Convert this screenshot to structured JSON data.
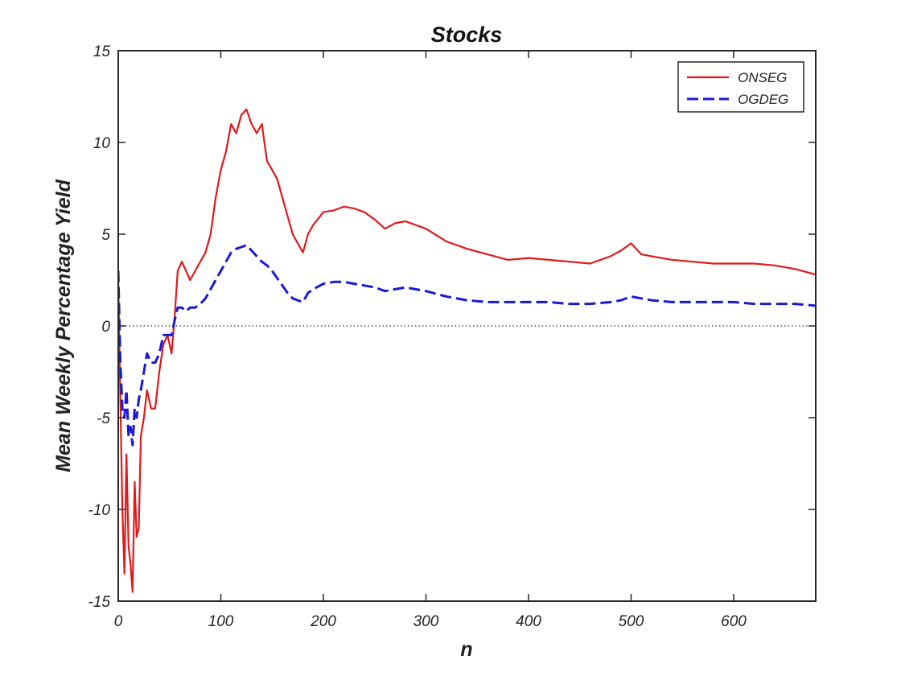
{
  "chart_data": {
    "type": "line",
    "title": "Stocks",
    "xlabel": "n",
    "ylabel": "Mean Weekly Percentage Yield",
    "xlim": [
      0,
      680
    ],
    "ylim": [
      -15,
      15
    ],
    "xticks": [
      0,
      100,
      200,
      300,
      400,
      500,
      600
    ],
    "yticks": [
      -15,
      -10,
      -5,
      0,
      5,
      10,
      15
    ],
    "xtick_labels": [
      "0",
      "100",
      "200",
      "300",
      "400",
      "500",
      "600"
    ],
    "ytick_labels": [
      "-15",
      "-10",
      "-5",
      "0",
      "5",
      "10",
      "15"
    ],
    "zero_line": true,
    "grid": false,
    "legend_position": "top-right",
    "series": [
      {
        "name": "ONSEG",
        "color": "#e0191b",
        "style": "solid",
        "x": [
          0,
          2,
          4,
          6,
          8,
          10,
          12,
          14,
          16,
          18,
          20,
          22,
          25,
          28,
          32,
          36,
          40,
          44,
          48,
          52,
          55,
          58,
          62,
          66,
          70,
          75,
          80,
          85,
          90,
          95,
          100,
          105,
          110,
          115,
          120,
          125,
          130,
          135,
          140,
          145,
          150,
          155,
          160,
          165,
          170,
          175,
          180,
          185,
          190,
          200,
          210,
          220,
          230,
          240,
          250,
          260,
          270,
          280,
          300,
          320,
          340,
          360,
          380,
          400,
          420,
          440,
          460,
          480,
          490,
          500,
          510,
          520,
          540,
          560,
          580,
          600,
          620,
          640,
          660,
          680
        ],
        "y": [
          2.5,
          -4.0,
          -10.0,
          -13.5,
          -7.0,
          -12.0,
          -13.0,
          -14.5,
          -8.5,
          -11.5,
          -11.0,
          -6.0,
          -5.0,
          -3.5,
          -4.5,
          -4.5,
          -2.5,
          -1.0,
          -0.5,
          -1.5,
          0.5,
          3.0,
          3.5,
          3.0,
          2.5,
          3.0,
          3.5,
          4.0,
          5.0,
          7.0,
          8.5,
          9.5,
          11.0,
          10.5,
          11.5,
          11.8,
          11.0,
          10.5,
          11.0,
          9.0,
          8.5,
          8.0,
          7.0,
          6.0,
          5.0,
          4.5,
          4.0,
          5.0,
          5.5,
          6.2,
          6.3,
          6.5,
          6.4,
          6.2,
          5.8,
          5.3,
          5.6,
          5.7,
          5.3,
          4.6,
          4.2,
          3.9,
          3.6,
          3.7,
          3.6,
          3.5,
          3.4,
          3.8,
          4.1,
          4.5,
          3.9,
          3.8,
          3.6,
          3.5,
          3.4,
          3.4,
          3.4,
          3.3,
          3.1,
          2.8
        ]
      },
      {
        "name": "OGDEG",
        "color": "#1a1ad6",
        "style": "dashed",
        "x": [
          0,
          2,
          4,
          6,
          8,
          10,
          12,
          14,
          16,
          18,
          20,
          22,
          25,
          28,
          32,
          36,
          40,
          44,
          48,
          52,
          55,
          58,
          62,
          66,
          70,
          75,
          80,
          85,
          90,
          95,
          100,
          105,
          110,
          115,
          120,
          125,
          130,
          135,
          140,
          145,
          150,
          155,
          160,
          165,
          170,
          175,
          180,
          185,
          190,
          200,
          210,
          220,
          230,
          240,
          250,
          260,
          270,
          280,
          300,
          320,
          340,
          360,
          380,
          400,
          420,
          440,
          460,
          480,
          490,
          500,
          510,
          520,
          540,
          560,
          580,
          600,
          620,
          640,
          660,
          680
        ],
        "y": [
          3.0,
          -2.0,
          -4.5,
          -5.0,
          -3.5,
          -6.0,
          -5.5,
          -6.5,
          -4.5,
          -5.0,
          -4.0,
          -3.5,
          -2.5,
          -1.5,
          -2.0,
          -2.0,
          -1.5,
          -0.5,
          -0.5,
          -0.5,
          0.3,
          1.0,
          1.0,
          0.8,
          1.0,
          1.0,
          1.2,
          1.5,
          2.0,
          2.5,
          3.0,
          3.5,
          4.0,
          4.2,
          4.3,
          4.4,
          4.1,
          3.8,
          3.5,
          3.3,
          3.0,
          2.6,
          2.2,
          1.8,
          1.5,
          1.4,
          1.3,
          1.8,
          2.0,
          2.3,
          2.4,
          2.4,
          2.3,
          2.2,
          2.1,
          1.9,
          2.0,
          2.1,
          1.9,
          1.6,
          1.4,
          1.3,
          1.3,
          1.3,
          1.3,
          1.2,
          1.2,
          1.3,
          1.4,
          1.6,
          1.5,
          1.4,
          1.3,
          1.3,
          1.3,
          1.3,
          1.2,
          1.2,
          1.2,
          1.1
        ]
      }
    ]
  }
}
